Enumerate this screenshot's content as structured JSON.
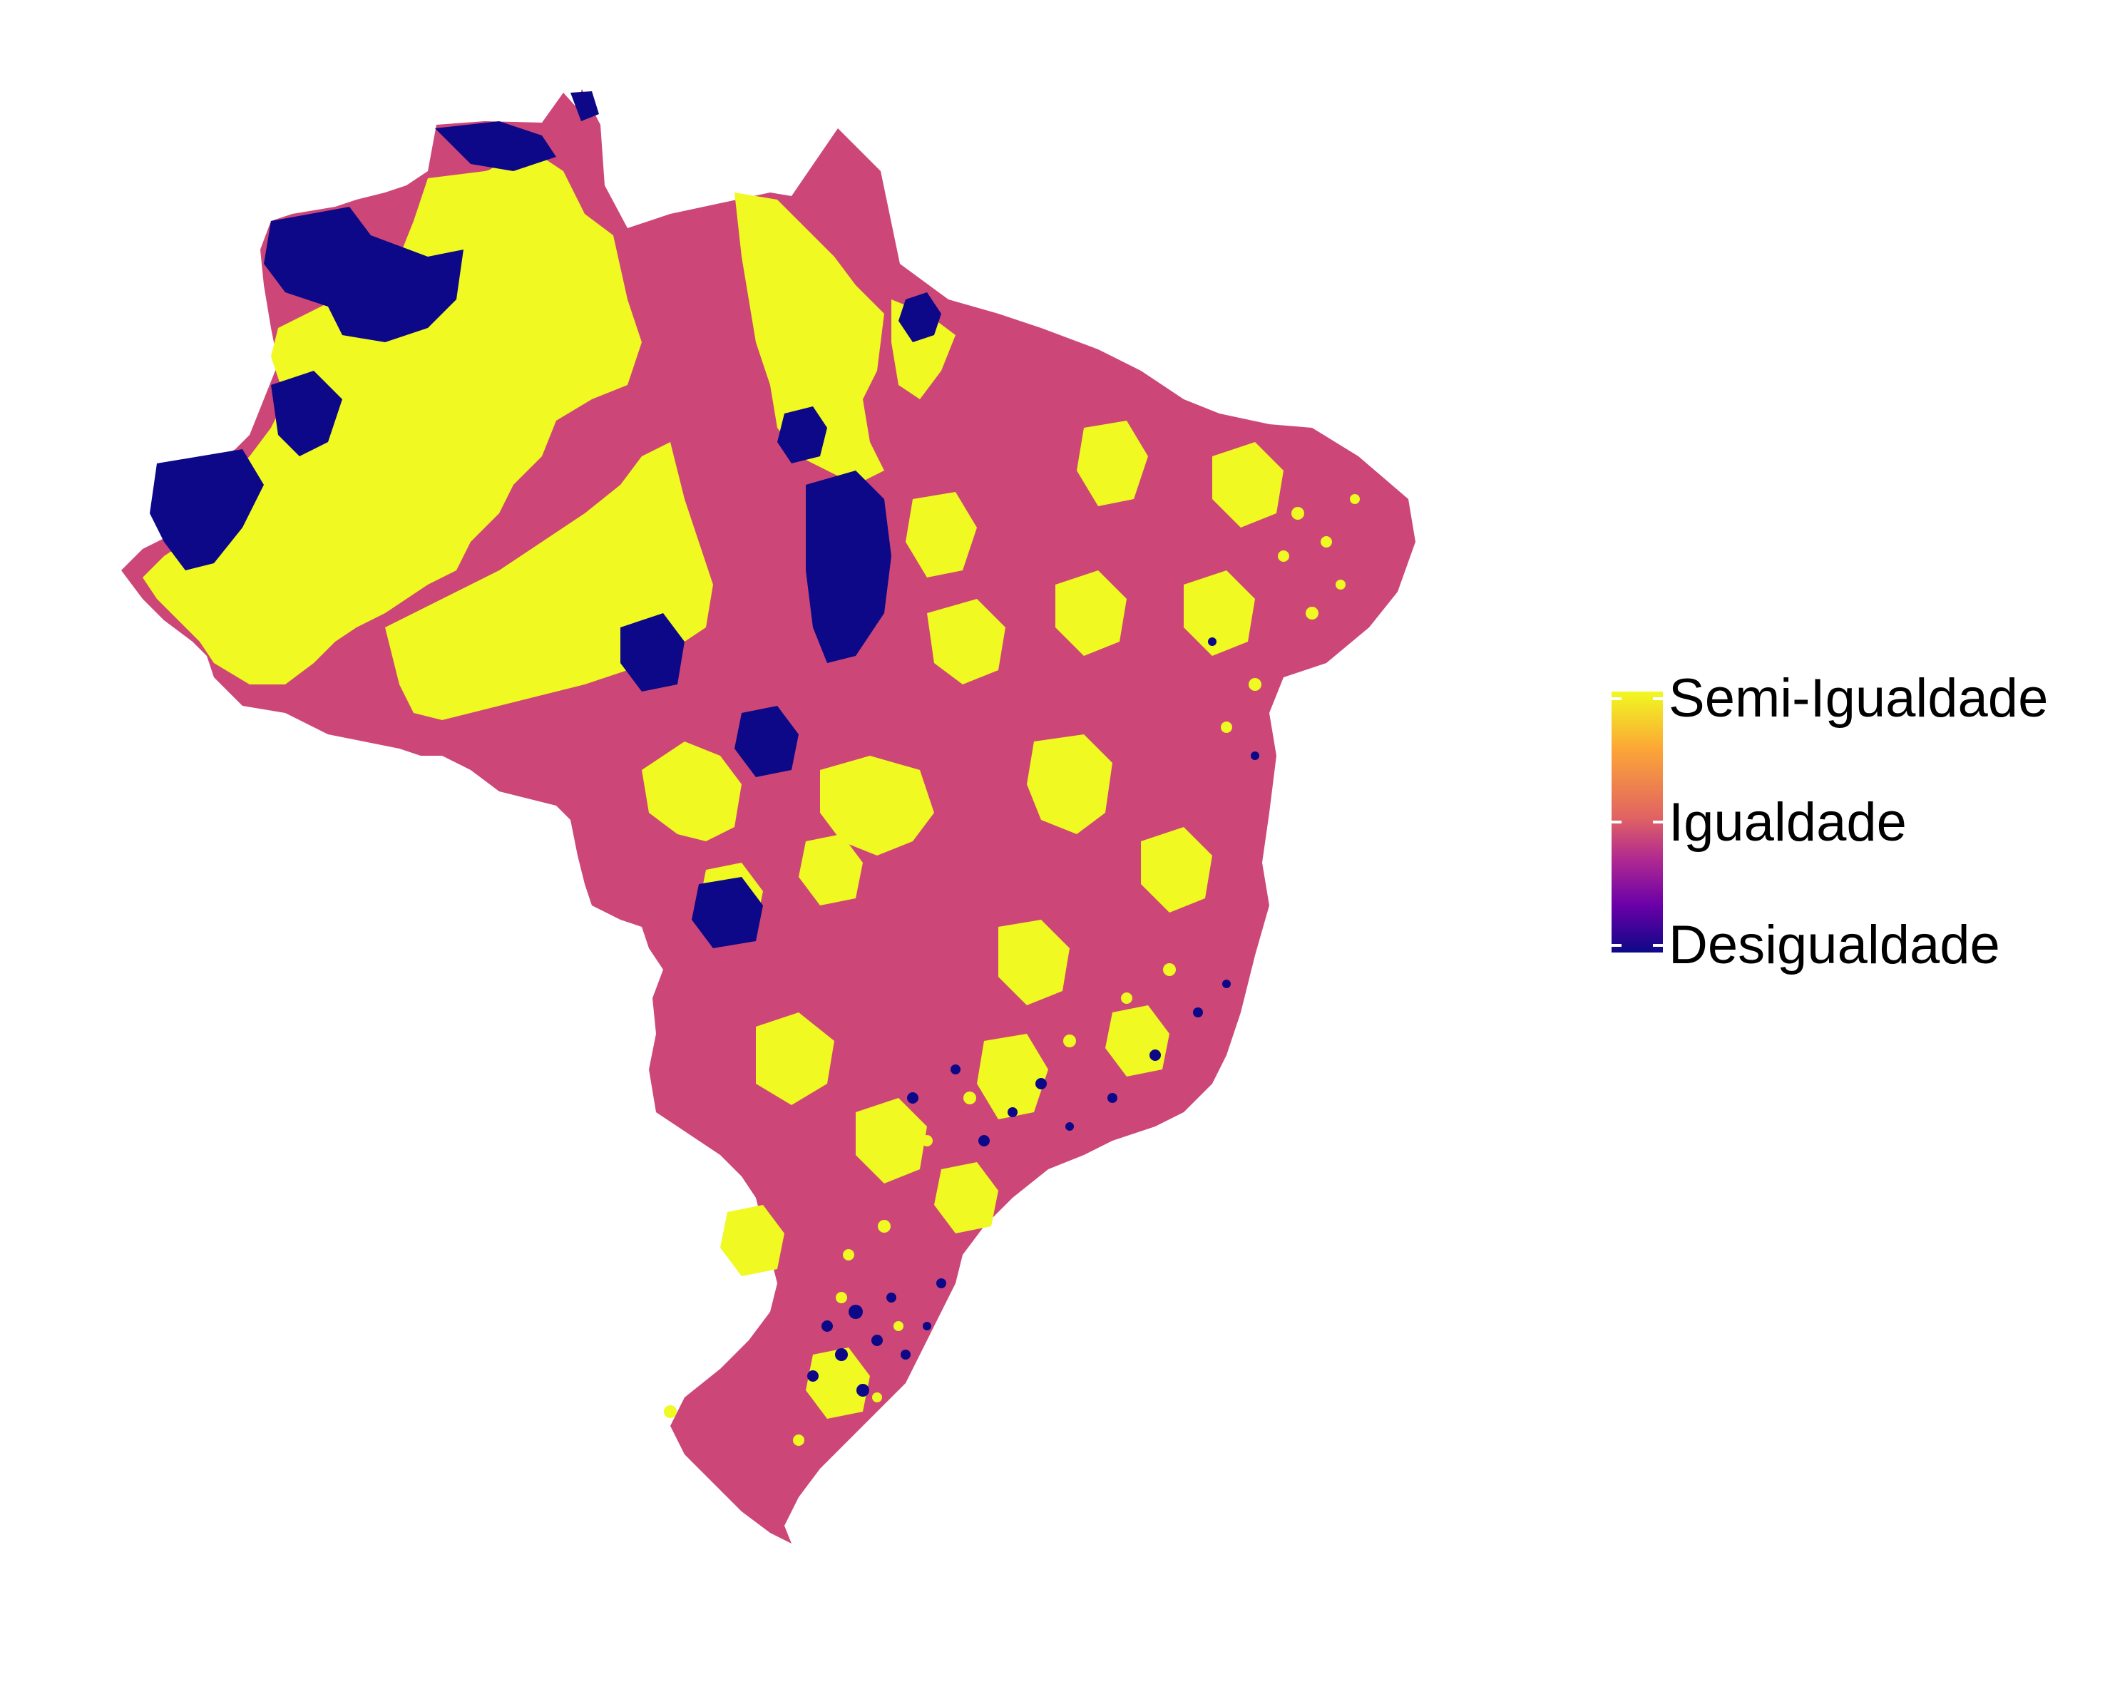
{
  "colors": {
    "high": "#F0F921",
    "mid": "#CC4778",
    "low": "#0D0887",
    "background": "#FFFFFF"
  },
  "legend": {
    "labels": {
      "top": "Semi-Igualdade",
      "middle": "Igualdade",
      "bottom": "Desigualdade"
    },
    "scale": [
      "#F0F921",
      "#FCA636",
      "#E16462",
      "#B12A90",
      "#6A00A8",
      "#0D0887"
    ]
  }
}
